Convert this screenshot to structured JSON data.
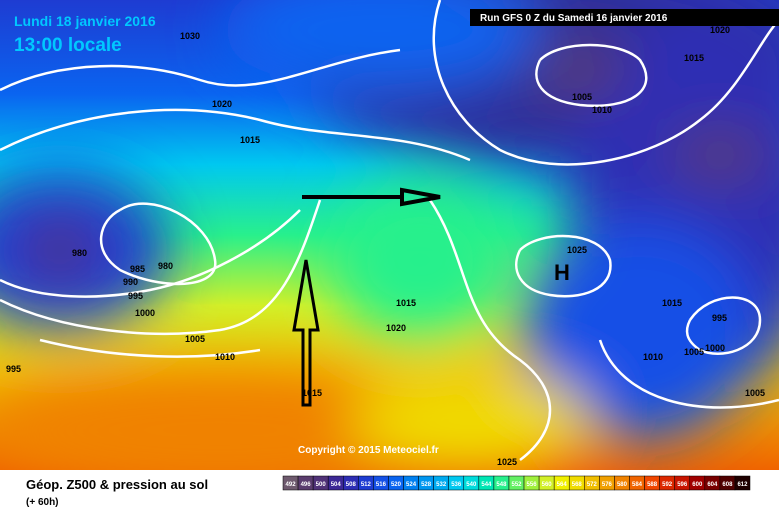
{
  "header": {
    "date": "Lundi 18 janvier 2016",
    "time": "13:00 locale",
    "run": "Run GFS 0 Z du Samedi 16 janvier 2016"
  },
  "isobar_labels": [
    "1030",
    "1020",
    "1015",
    "1020",
    "1015",
    "1005",
    "1010",
    "980",
    "985",
    "980",
    "990",
    "995",
    "1000",
    "1005",
    "1010",
    "995",
    "1025",
    "H",
    "1015",
    "1020",
    "1015",
    "995",
    "1010",
    "1005",
    "1000",
    "1005",
    "1025",
    "1015"
  ],
  "copyright": "Copyright © 2015 Meteociel.fr",
  "footer": {
    "title": "Géop. Z500 & pression au sol",
    "lead": "(+ 60h)"
  },
  "legend": {
    "labels": [
      "492",
      "496",
      "500",
      "504",
      "508",
      "512",
      "516",
      "520",
      "524",
      "528",
      "532",
      "536",
      "540",
      "544",
      "548",
      "552",
      "556",
      "560",
      "564",
      "568",
      "572",
      "576",
      "580",
      "584",
      "588",
      "592",
      "596",
      "600",
      "604",
      "608",
      "612"
    ],
    "colors": [
      "#6e5a6e",
      "#5a3c6e",
      "#503278",
      "#3c2896",
      "#2d2db4",
      "#1e3cd2",
      "#1450e6",
      "#0a64f0",
      "#0080f0",
      "#0096f0",
      "#00aaf0",
      "#00c8f0",
      "#00dcdc",
      "#00e6b4",
      "#28f08c",
      "#64f064",
      "#a0f03c",
      "#d2f028",
      "#f0f000",
      "#f0dc00",
      "#f0be00",
      "#f0a000",
      "#f08200",
      "#f06400",
      "#f04600",
      "#dc2800",
      "#c81400",
      "#a00000",
      "#780000",
      "#500000",
      "#1e0000"
    ]
  }
}
